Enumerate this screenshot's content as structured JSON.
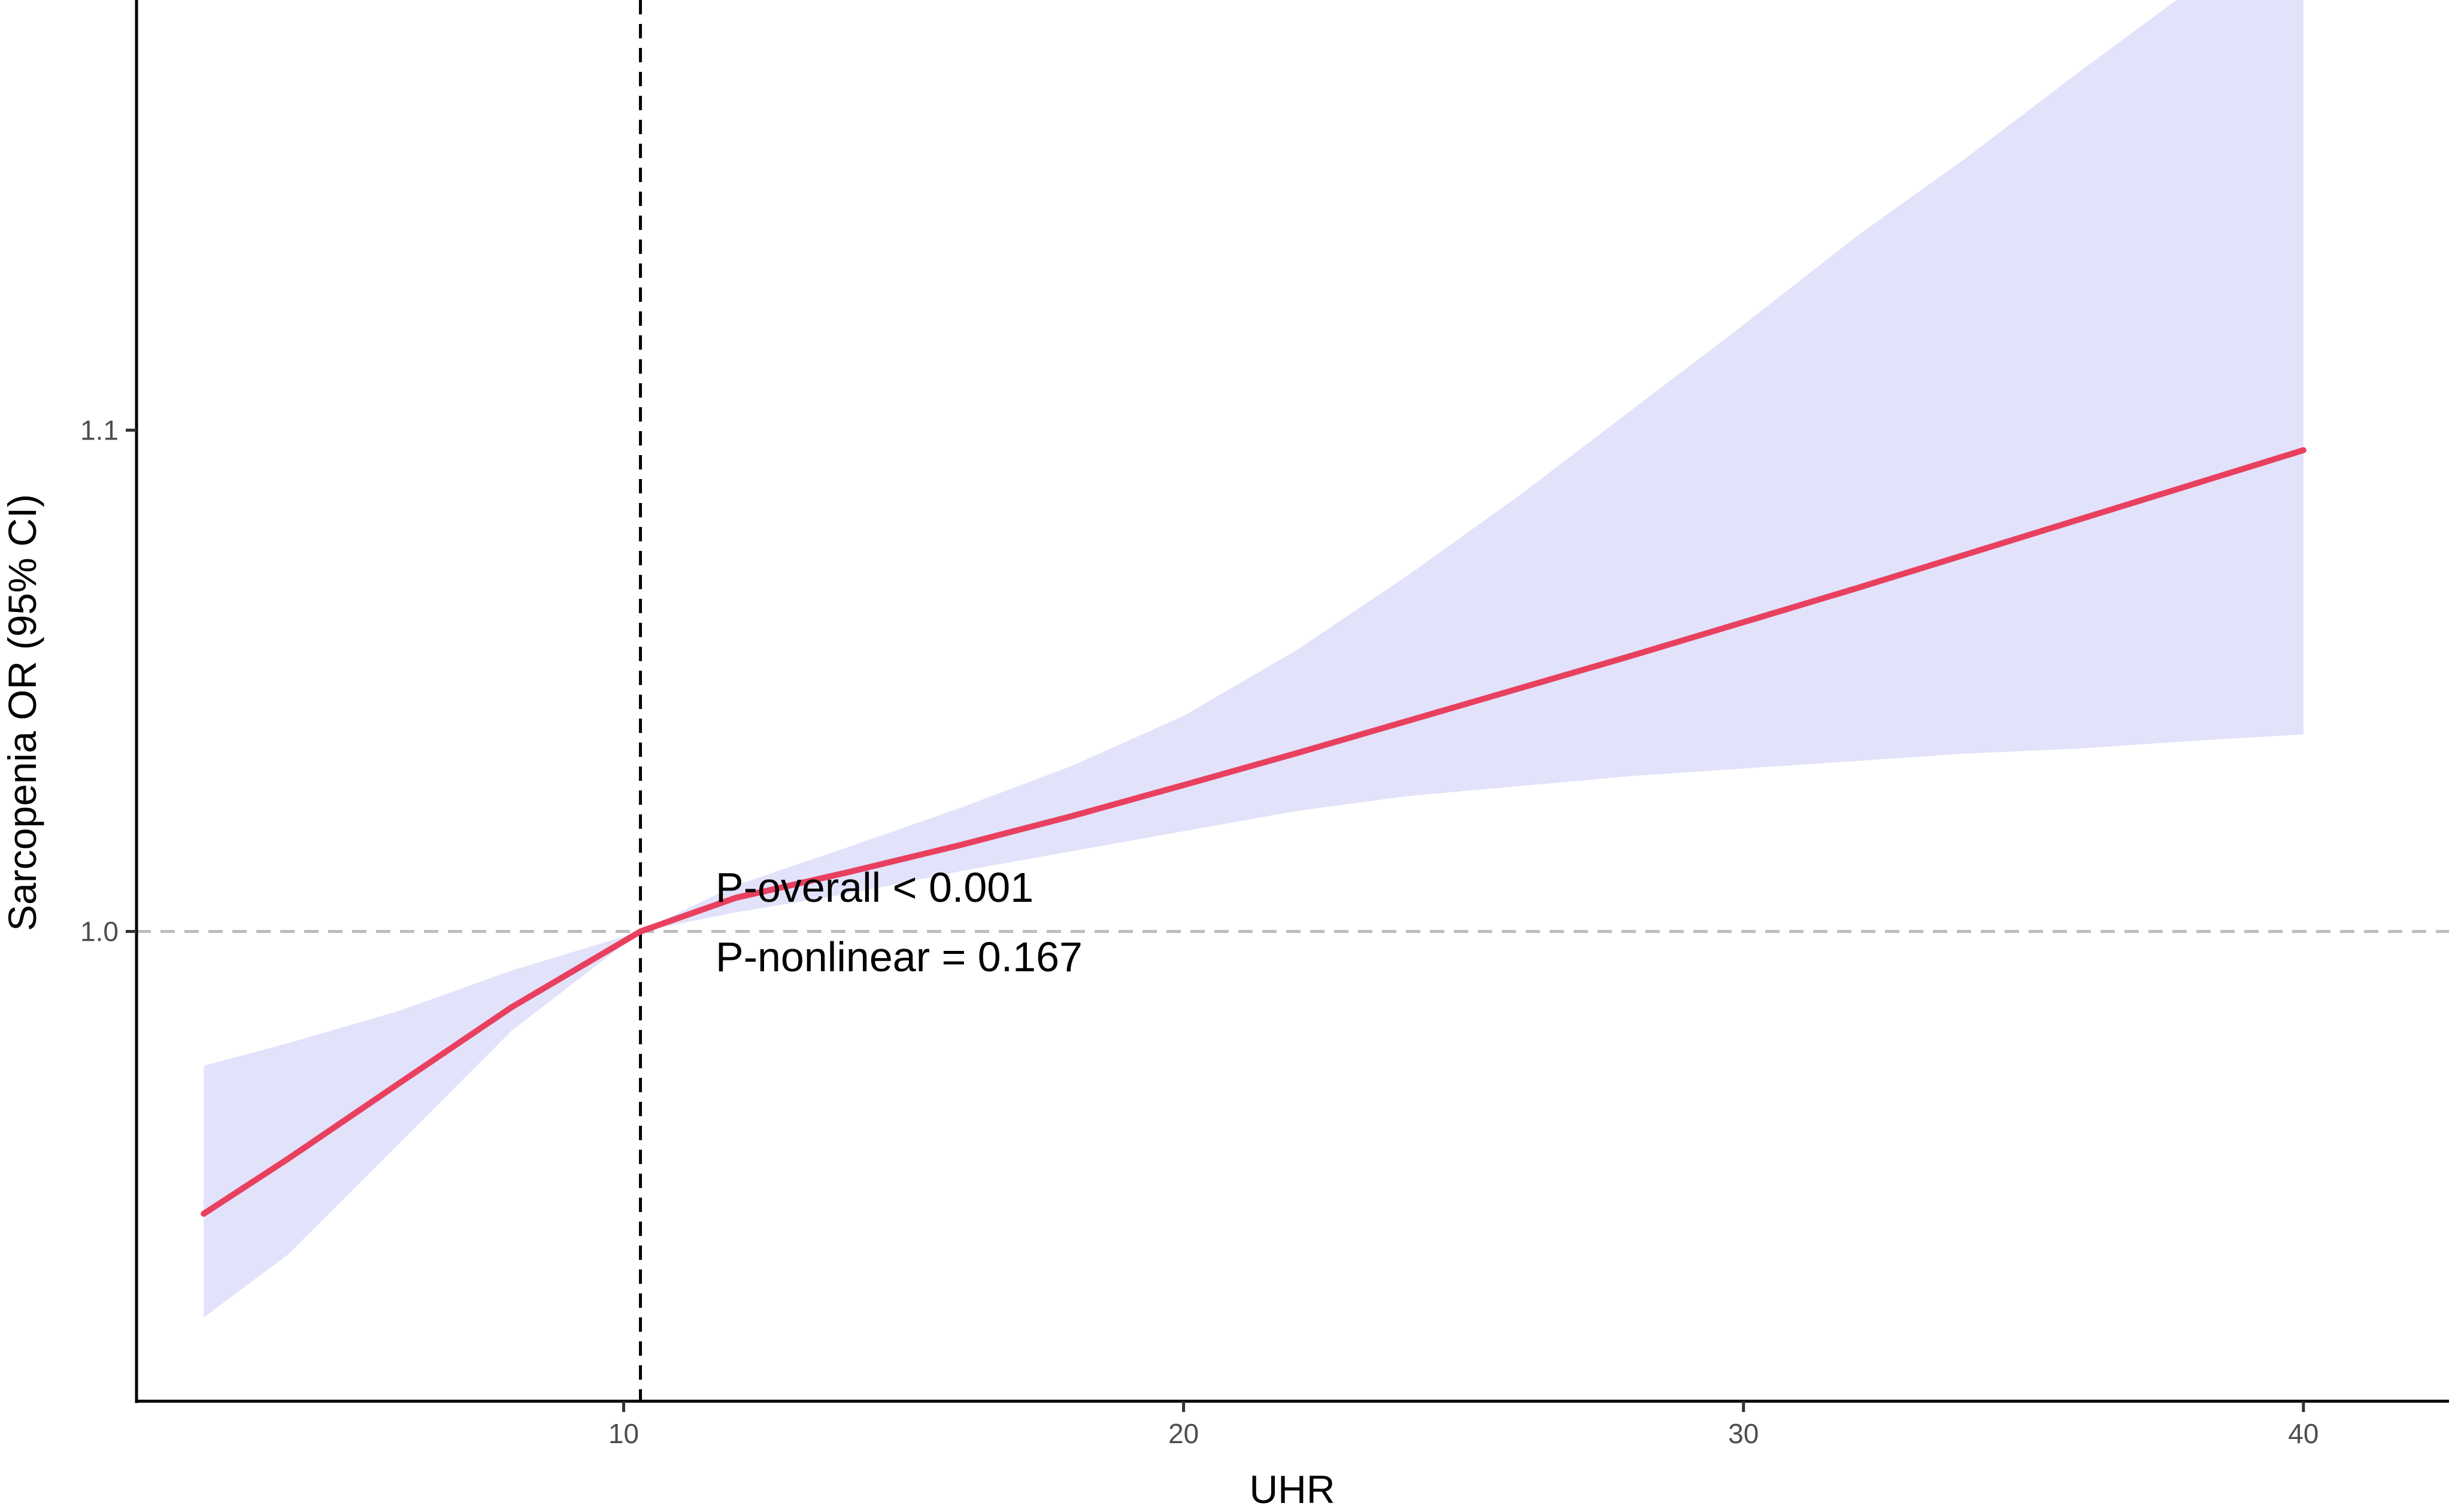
{
  "chart_data": {
    "type": "line",
    "title": "",
    "xlabel": "UHR",
    "ylabel": "Sarcopenia OR (95% CI)",
    "xlim": [
      1.3,
      42.6
    ],
    "ylim": [
      0.9063,
      1.1858
    ],
    "x_ticks": [
      {
        "value": 10,
        "label": "10"
      },
      {
        "value": 20,
        "label": "20"
      },
      {
        "value": 30,
        "label": "30"
      },
      {
        "value": 40,
        "label": "40"
      }
    ],
    "y_ticks": [
      {
        "value": 1.0,
        "label": "1.0"
      },
      {
        "value": 1.1,
        "label": "1.1"
      }
    ],
    "grid": false,
    "legend": "none",
    "reference_lines": {
      "vertical_x": 10.3,
      "horizontal_y": 1.0
    },
    "annotations": [
      "P-overall < 0.001",
      "P-nonlinear = 0.167"
    ],
    "series": [
      {
        "x": [
          2.5,
          4,
          6,
          8,
          10.3,
          12,
          14,
          16,
          18,
          20,
          22,
          24,
          26,
          28,
          30,
          32,
          34,
          36,
          38,
          40
        ],
        "y": [
          0.9437,
          0.9546,
          0.9698,
          0.9849,
          1.0,
          1.0067,
          1.0118,
          1.0172,
          1.023,
          1.0292,
          1.0355,
          1.042,
          1.0485,
          1.055,
          1.0617,
          1.0684,
          1.0753,
          1.0822,
          1.0891,
          1.096
        ],
        "lower": [
          0.923,
          0.9355,
          0.9578,
          0.9802,
          1.0,
          1.0038,
          1.0075,
          1.012,
          1.016,
          1.02,
          1.024,
          1.027,
          1.029,
          1.031,
          1.0325,
          1.034,
          1.0355,
          1.0365,
          1.038,
          1.0393
        ],
        "upper": [
          0.9732,
          0.9777,
          0.9842,
          0.9922,
          1.0,
          1.0092,
          1.0168,
          1.0246,
          1.033,
          1.043,
          1.056,
          1.071,
          1.087,
          1.104,
          1.121,
          1.1385,
          1.1545,
          1.1715,
          1.188,
          1.2045
        ]
      }
    ],
    "colors": {
      "line": "#e8405e",
      "ci_band": "#e2e2fa",
      "axis": "#000000",
      "reference": "#bdbdbd"
    }
  }
}
